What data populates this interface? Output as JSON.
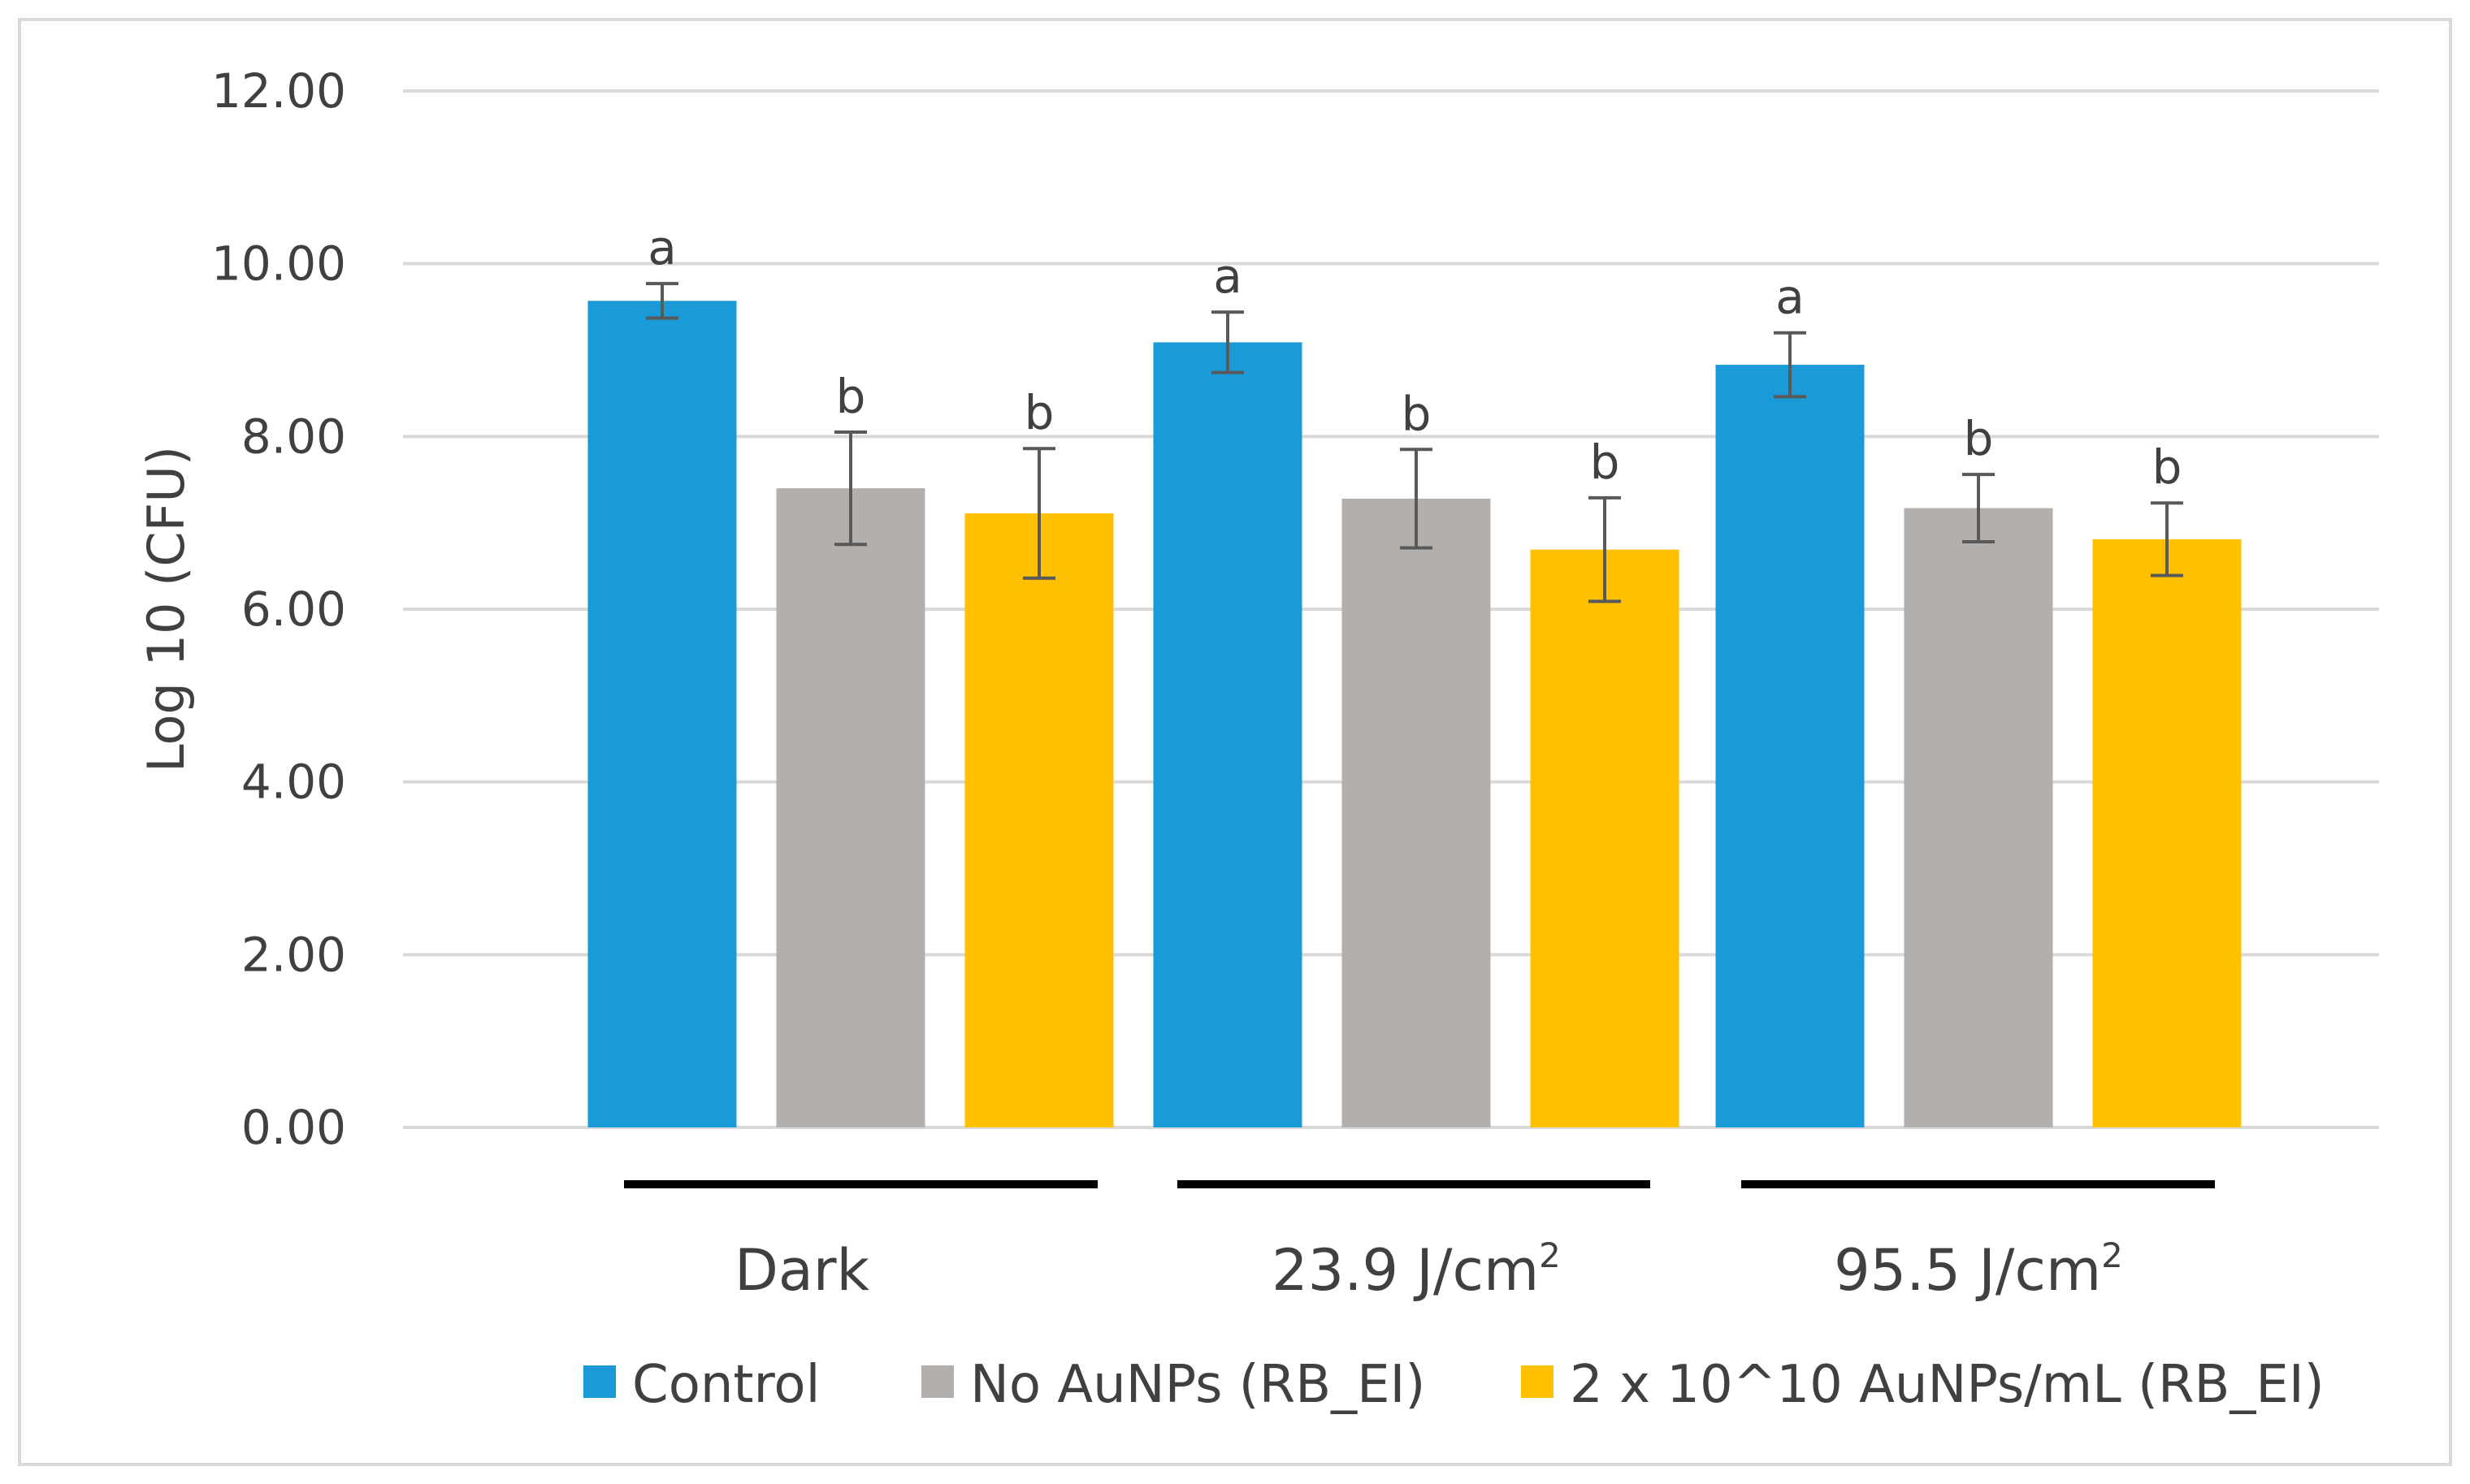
{
  "chart_data": {
    "type": "bar",
    "title": "",
    "xlabel": "",
    "ylabel": "Log 10 (CFU)",
    "ylim": [
      0,
      12
    ],
    "yticks": [
      "0.00",
      "2.00",
      "4.00",
      "6.00",
      "8.00",
      "10.00",
      "12.00"
    ],
    "grid": true,
    "legend_position": "bottom",
    "categories": [
      {
        "text": "Dark",
        "sup": ""
      },
      {
        "text": "23.9 J/cm",
        "sup": "2"
      },
      {
        "text": "95.5 J/cm",
        "sup": "2"
      }
    ],
    "series": [
      {
        "name": "Control",
        "color": "#1a9bd7",
        "values": [
          9.57,
          9.09,
          8.83
        ],
        "errors": [
          0.2,
          0.35,
          0.37
        ],
        "labels": [
          "a",
          "a",
          "a"
        ]
      },
      {
        "name": "No AuNPs (RB_EI)",
        "color": "#b3afac",
        "values": [
          7.4,
          7.28,
          7.17
        ],
        "errors": [
          0.65,
          0.57,
          0.39
        ],
        "labels": [
          "b",
          "b",
          "b"
        ]
      },
      {
        "name": "2 x 10^10 AuNPs/mL (RB_EI)",
        "color": "#ffc000",
        "values": [
          7.11,
          6.69,
          6.81
        ],
        "errors": [
          0.75,
          0.6,
          0.42
        ],
        "labels": [
          "b",
          "b",
          "b"
        ]
      }
    ]
  }
}
